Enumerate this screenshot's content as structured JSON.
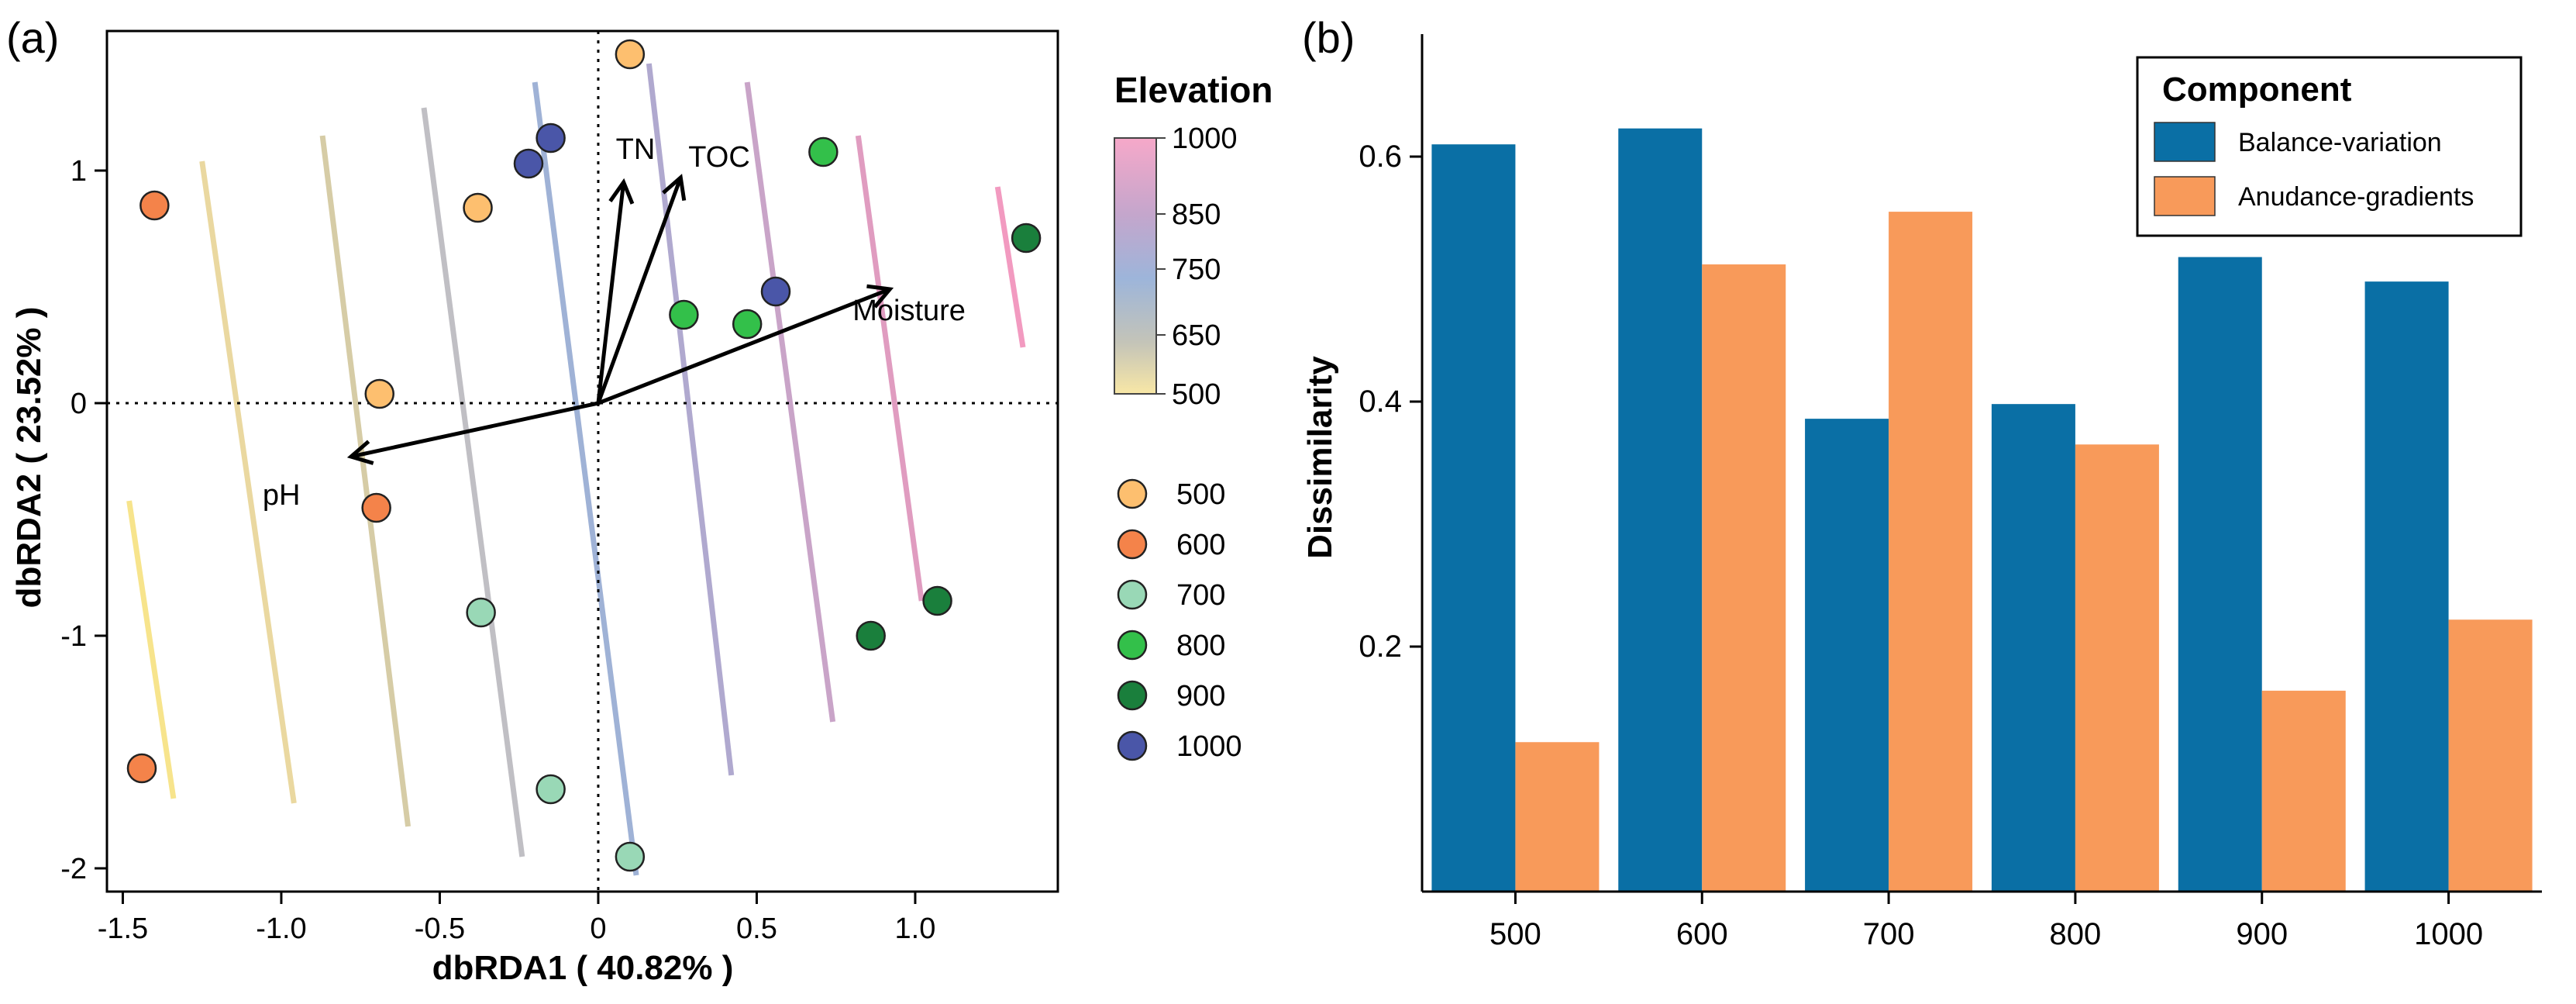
{
  "chart_data": [
    {
      "panel_label": "(a)",
      "type": "scatter",
      "xlabel": "dbRDA1 ( 40.82% )",
      "ylabel": "dbRDA2 ( 23.52% )",
      "xlim": [
        -1.55,
        1.45
      ],
      "ylim": [
        -2.1,
        1.6
      ],
      "xticks": [
        -1.5,
        -1.0,
        -0.5,
        0,
        0.5,
        1.0
      ],
      "xtick_labels": [
        "-1.5",
        "-1.0",
        "-0.5",
        "0",
        "0.5",
        "1.0"
      ],
      "yticks": [
        -2,
        -1,
        0,
        1
      ],
      "ytick_labels": [
        "-2",
        "-1",
        "0",
        "1"
      ],
      "reference_lines": "dotted lines at x=0 and y=0",
      "series": [
        {
          "name": "500",
          "color": "#fdbf6f",
          "points": [
            [
              0.1,
              1.5
            ],
            [
              -0.38,
              0.84
            ],
            [
              -0.69,
              0.04
            ]
          ]
        },
        {
          "name": "600",
          "color": "#f4834a",
          "points": [
            [
              -1.4,
              0.85
            ],
            [
              -0.7,
              -0.45
            ],
            [
              -1.44,
              -1.57
            ]
          ]
        },
        {
          "name": "700",
          "color": "#99d8b6",
          "points": [
            [
              -0.37,
              -0.9
            ],
            [
              -0.15,
              -1.66
            ],
            [
              0.1,
              -1.95
            ]
          ]
        },
        {
          "name": "800",
          "color": "#33c04a",
          "points": [
            [
              0.71,
              1.08
            ],
            [
              0.27,
              0.38
            ],
            [
              0.47,
              0.34
            ]
          ]
        },
        {
          "name": "900",
          "color": "#1a7f3c",
          "points": [
            [
              1.35,
              0.71
            ],
            [
              0.86,
              -1.0
            ],
            [
              1.07,
              -0.85
            ]
          ]
        },
        {
          "name": "1000",
          "color": "#4a56a8",
          "points": [
            [
              -0.15,
              1.14
            ],
            [
              -0.22,
              1.03
            ],
            [
              0.56,
              0.48
            ]
          ]
        }
      ],
      "vectors": [
        {
          "label": "TN",
          "x": 0.08,
          "y": 0.95
        },
        {
          "label": "TOC",
          "x": 0.26,
          "y": 0.97
        },
        {
          "label": "Moisture",
          "x": 0.92,
          "y": 0.49
        },
        {
          "label": "pH",
          "x": -0.78,
          "y": -0.23
        }
      ],
      "contours": [
        {
          "level": 500,
          "color": "#f7e48c",
          "from": [
            -1.48,
            -0.42
          ],
          "to": [
            -1.34,
            -1.7
          ]
        },
        {
          "level": 550,
          "color": "#ead8a0",
          "from": [
            -1.25,
            1.04
          ],
          "to": [
            -0.96,
            -1.72
          ]
        },
        {
          "level": 600,
          "color": "#d6cca6",
          "from": [
            -0.87,
            1.15
          ],
          "to": [
            -0.6,
            -1.82
          ]
        },
        {
          "level": 650,
          "color": "#c0bfc4",
          "from": [
            -0.55,
            1.27
          ],
          "to": [
            -0.24,
            -1.95
          ]
        },
        {
          "level": 700,
          "color": "#9fb2d6",
          "from": [
            -0.2,
            1.38
          ],
          "to": [
            0.12,
            -2.03
          ]
        },
        {
          "level": 750,
          "color": "#b0a9cf",
          "from": [
            0.16,
            1.46
          ],
          "to": [
            0.42,
            -1.6
          ]
        },
        {
          "level": 800,
          "color": "#c9a4c8",
          "from": [
            0.47,
            1.38
          ],
          "to": [
            0.74,
            -1.37
          ]
        },
        {
          "level": 850,
          "color": "#e09cc0",
          "from": [
            0.82,
            1.15
          ],
          "to": [
            1.02,
            -0.85
          ]
        },
        {
          "level": 900,
          "color": "#f29ac0",
          "from": [
            1.26,
            0.93
          ],
          "to": [
            1.34,
            0.24
          ]
        }
      ],
      "colorbar": {
        "title": "Elevation",
        "labels": [
          "1000",
          "850",
          "750",
          "650",
          "500"
        ],
        "colors": [
          "#f6a8c9",
          "#c4a6cc",
          "#9db5da",
          "#c4c4b8",
          "#f8e7a6"
        ]
      },
      "legend": {
        "position": "right",
        "entries": [
          "500",
          "600",
          "700",
          "800",
          "900",
          "1000"
        ]
      }
    },
    {
      "panel_label": "(b)",
      "type": "bar",
      "categories": [
        "500",
        "600",
        "700",
        "800",
        "900",
        "1000"
      ],
      "series": [
        {
          "name": "Balance-variation",
          "color": "#0a6fa5",
          "values": [
            0.61,
            0.623,
            0.386,
            0.398,
            0.518,
            0.498
          ]
        },
        {
          "name": "Anudance-gradients",
          "color": "#f89a5a",
          "values": [
            0.122,
            0.512,
            0.555,
            0.365,
            0.164,
            0.222
          ]
        }
      ],
      "ylabel": "Dissimilarity",
      "xlabel": "",
      "ylim": [
        0,
        0.7
      ],
      "yticks": [
        0.2,
        0.4,
        0.6
      ],
      "ytick_labels": [
        "0.2",
        "0.4",
        "0.6"
      ],
      "grid": false,
      "legend": {
        "title": "Component",
        "position": "top-right"
      }
    }
  ]
}
